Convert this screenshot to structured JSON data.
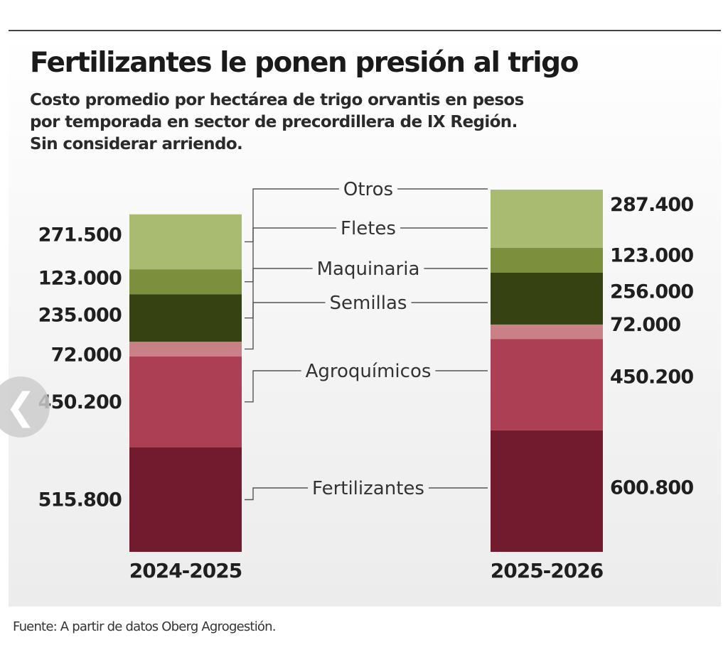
{
  "title": "Fertilizantes le ponen presión al trigo",
  "subtitle": "Costo promedio por hectárea de trigo orvantis en pesos por temporada en sector de precordillera de IX Región. Sin considerar arriendo.",
  "source": "Fuente: A partir de datos Oberg Agrogestión.",
  "nav": {
    "prev_icon": "chevron-left-icon",
    "prev_glyph": "❮"
  },
  "chart_data": {
    "type": "bar",
    "stacked": true,
    "title": "Fertilizantes le ponen presión al trigo",
    "categories": [
      "2024-2025",
      "2025-2026"
    ],
    "series": [
      {
        "name": "Fertilizantes",
        "values": [
          515800,
          600800
        ],
        "color": "#721a2e",
        "labels": [
          "515.800",
          "600.800"
        ]
      },
      {
        "name": "Agroquímicos",
        "values": [
          450200,
          450200
        ],
        "color": "#ad3f55",
        "labels": [
          "450.200",
          "450.200"
        ]
      },
      {
        "name": "Semillas",
        "values": [
          72000,
          72000
        ],
        "color": "#c98086",
        "labels": [
          "72.000",
          "72.000"
        ]
      },
      {
        "name": "Maquinaria",
        "values": [
          235000,
          256000
        ],
        "color": "#364212",
        "labels": [
          "235.000",
          "256.000"
        ]
      },
      {
        "name": "Fletes",
        "values": [
          123000,
          123000
        ],
        "color": "#7b8f3d",
        "labels": [
          "123.000",
          "123.000"
        ]
      },
      {
        "name": "Otros",
        "values": [
          271500,
          287400
        ],
        "color": "#a9bb70",
        "labels": [
          "271.500",
          "287.400"
        ]
      }
    ],
    "xlabel": "",
    "ylabel": "",
    "grid": false,
    "legend": "center, between bars"
  }
}
